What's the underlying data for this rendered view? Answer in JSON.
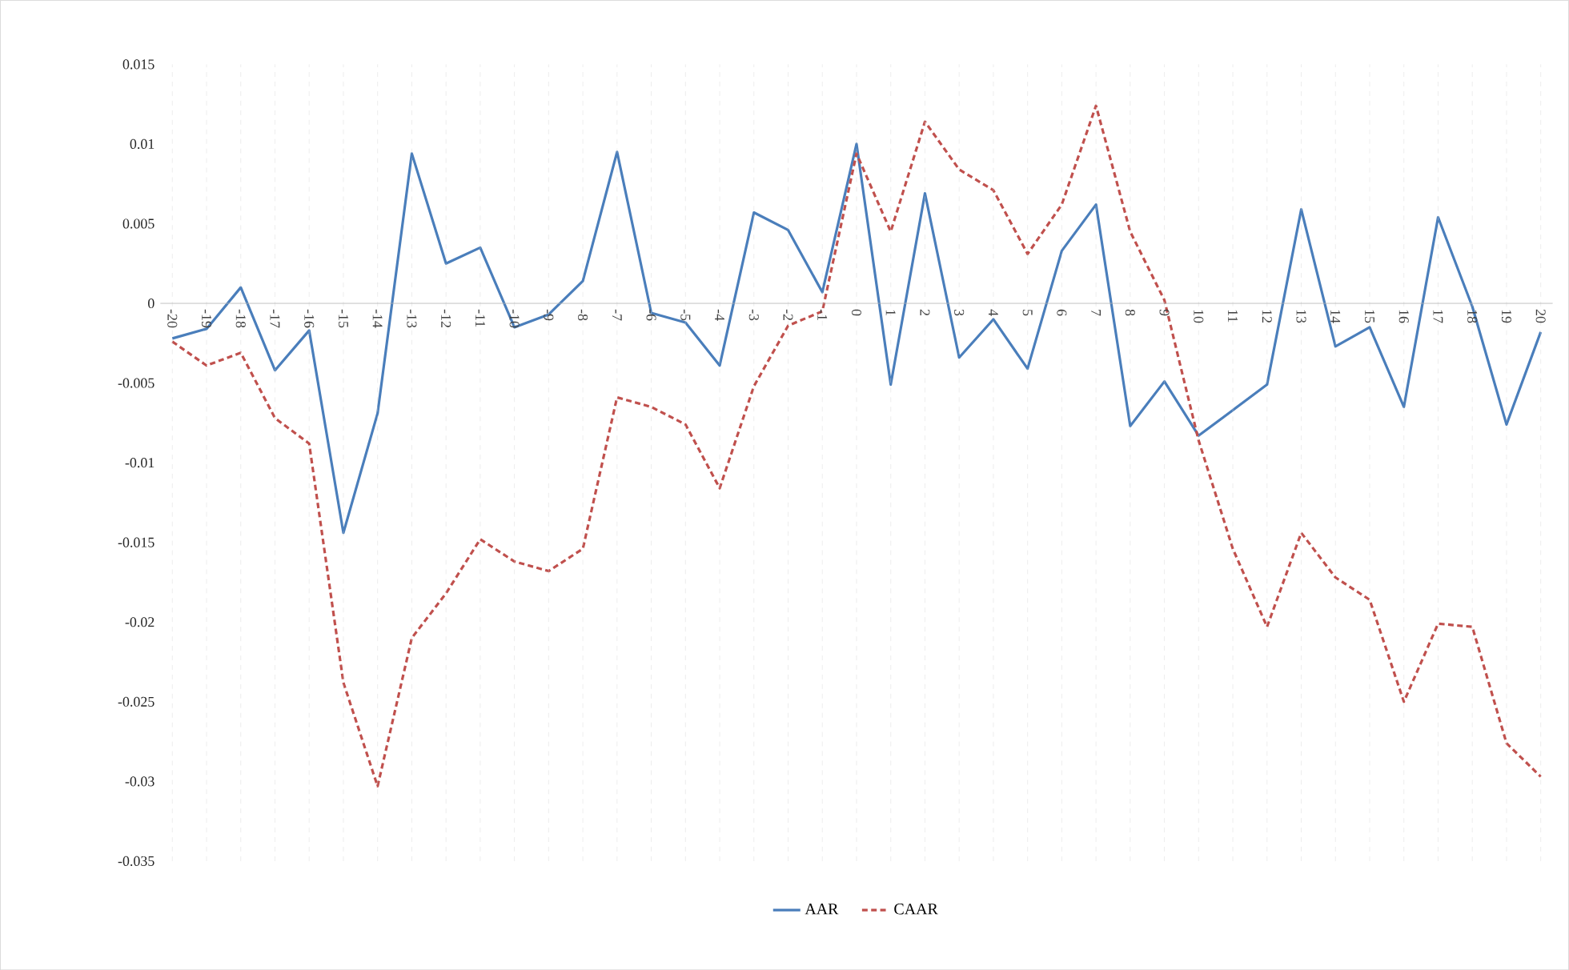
{
  "chart_data": {
    "type": "line",
    "categories": [
      "-20",
      "-19",
      "-18",
      "-17",
      "-16",
      "-15",
      "-14",
      "-13",
      "-12",
      "-11",
      "-10",
      "-9",
      "-8",
      "-7",
      "-6",
      "-5",
      "-4",
      "-3",
      "-2",
      "-1",
      "0",
      "1",
      "2",
      "3",
      "4",
      "5",
      "6",
      "7",
      "8",
      "9",
      "10",
      "11",
      "12",
      "13",
      "14",
      "15",
      "16",
      "17",
      "18",
      "19",
      "20"
    ],
    "series": [
      {
        "name": "AAR",
        "color": "#4a7ebb",
        "line_style": "solid",
        "values": [
          -0.0022,
          -0.0016,
          0.001,
          -0.0042,
          -0.0017,
          -0.0144,
          -0.0069,
          0.0094,
          0.0025,
          0.0035,
          -0.0015,
          -0.0007,
          0.0014,
          0.0095,
          -0.0006,
          -0.0012,
          -0.0039,
          0.0057,
          0.0046,
          0.0007,
          0.01,
          -0.0051,
          0.0069,
          -0.0034,
          -0.001,
          -0.0041,
          0.0033,
          0.0062,
          -0.0077,
          -0.0049,
          -0.0083,
          -0.0067,
          -0.0051,
          0.0059,
          -0.0027,
          -0.0015,
          -0.0065,
          0.0054,
          -0.0002,
          -0.0076,
          -0.0018
        ]
      },
      {
        "name": "CAAR",
        "color": "#c0504d",
        "line_style": "dashed",
        "values": [
          -0.0024,
          -0.0039,
          -0.0031,
          -0.0072,
          -0.0088,
          -0.0238,
          -0.0303,
          -0.021,
          -0.0182,
          -0.0148,
          -0.0162,
          -0.0168,
          -0.0154,
          -0.0059,
          -0.0065,
          -0.0076,
          -0.0116,
          -0.0052,
          -0.0014,
          -0.0005,
          0.0094,
          0.0045,
          0.0114,
          0.0084,
          0.0071,
          0.0031,
          0.0062,
          0.0124,
          0.0045,
          0.0002,
          -0.0086,
          -0.0154,
          -0.0203,
          -0.0144,
          -0.0172,
          -0.0186,
          -0.025,
          -0.0201,
          -0.0203,
          -0.0276,
          -0.0297
        ]
      }
    ],
    "ylim": [
      -0.035,
      0.015
    ],
    "yticks": [
      -0.035,
      -0.03,
      -0.025,
      -0.02,
      -0.015,
      -0.01,
      -0.005,
      0,
      0.005,
      0.01,
      0.015
    ],
    "grid": "x",
    "legend": "bottom",
    "marker": "none"
  }
}
